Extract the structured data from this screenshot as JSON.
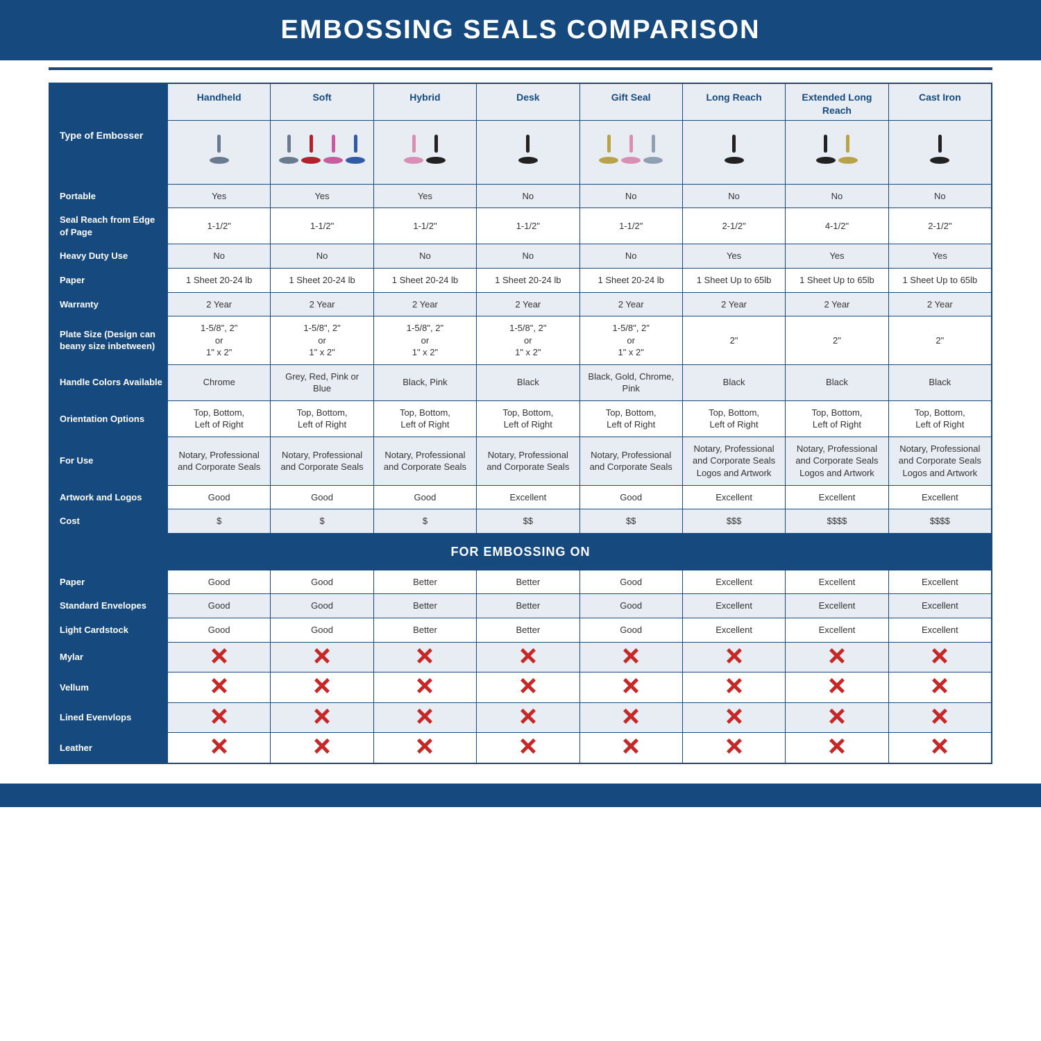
{
  "title": "EMBOSSING SEALS COMPARISON",
  "section_title": "FOR EMBOSSING ON",
  "colors": {
    "primary": "#164a7e",
    "header_bg": "#e8edf3",
    "text": "#333333",
    "x_red": "#c62828",
    "white": "#ffffff"
  },
  "columns": [
    {
      "label": "Type of Embosser",
      "is_rowlabel": true
    },
    {
      "label": "Handheld",
      "icon_colors": [
        "#6b7a8f"
      ]
    },
    {
      "label": "Soft",
      "icon_colors": [
        "#6b7a8f",
        "#b0222c",
        "#c85c9e",
        "#2e5aa8"
      ]
    },
    {
      "label": "Hybrid",
      "icon_colors": [
        "#d88fb3",
        "#222222"
      ]
    },
    {
      "label": "Desk",
      "icon_colors": [
        "#222222"
      ]
    },
    {
      "label": "Gift Seal",
      "icon_colors": [
        "#b8a24a",
        "#d88fb3",
        "#8fa0b3"
      ]
    },
    {
      "label": "Long Reach",
      "icon_colors": [
        "#222222"
      ]
    },
    {
      "label": "Extended Long Reach",
      "icon_colors": [
        "#222222",
        "#b8a24a"
      ]
    },
    {
      "label": "Cast Iron",
      "icon_colors": [
        "#222222"
      ]
    }
  ],
  "rows_main": [
    {
      "label": "Portable",
      "stripe": true,
      "cells": [
        "Yes",
        "Yes",
        "Yes",
        "No",
        "No",
        "No",
        "No",
        "No"
      ]
    },
    {
      "label": "Seal Reach from Edge of Page",
      "stripe": false,
      "cells": [
        "1-1/2\"",
        "1-1/2\"",
        "1-1/2\"",
        "1-1/2\"",
        "1-1/2\"",
        "2-1/2\"",
        "4-1/2\"",
        "2-1/2\""
      ]
    },
    {
      "label": "Heavy Duty Use",
      "stripe": true,
      "cells": [
        "No",
        "No",
        "No",
        "No",
        "No",
        "Yes",
        "Yes",
        "Yes"
      ]
    },
    {
      "label": "Paper",
      "stripe": false,
      "cells": [
        "1 Sheet 20-24 lb",
        "1 Sheet 20-24 lb",
        "1 Sheet 20-24 lb",
        "1 Sheet 20-24 lb",
        "1 Sheet 20-24 lb",
        "1 Sheet Up to 65lb",
        "1 Sheet Up to 65lb",
        "1 Sheet Up to 65lb"
      ]
    },
    {
      "label": "Warranty",
      "stripe": true,
      "cells": [
        "2 Year",
        "2 Year",
        "2 Year",
        "2 Year",
        "2 Year",
        "2 Year",
        "2 Year",
        "2 Year"
      ]
    },
    {
      "label": "Plate Size (Design can beany size inbetween)",
      "stripe": false,
      "cells": [
        "1-5/8\", 2\"\nor\n1\" x 2\"",
        "1-5/8\", 2\"\nor\n1\" x 2\"",
        "1-5/8\", 2\"\nor\n1\" x 2\"",
        "1-5/8\", 2\"\nor\n1\" x 2\"",
        "1-5/8\", 2\"\nor\n1\" x 2\"",
        "2\"",
        "2\"",
        "2\""
      ]
    },
    {
      "label": "Handle Colors Available",
      "stripe": true,
      "cells": [
        "Chrome",
        "Grey, Red, Pink or Blue",
        "Black, Pink",
        "Black",
        "Black, Gold, Chrome, Pink",
        "Black",
        "Black",
        "Black"
      ]
    },
    {
      "label": "Orientation Options",
      "stripe": false,
      "cells": [
        "Top, Bottom,\nLeft of Right",
        "Top, Bottom,\nLeft of Right",
        "Top, Bottom,\nLeft of Right",
        "Top, Bottom,\nLeft of Right",
        "Top, Bottom,\nLeft of Right",
        "Top, Bottom,\nLeft of Right",
        "Top, Bottom,\nLeft of Right",
        "Top, Bottom,\nLeft of Right"
      ]
    },
    {
      "label": "For Use",
      "stripe": true,
      "cells": [
        "Notary, Professional and Corporate Seals",
        "Notary, Professional and Corporate Seals",
        "Notary, Professional and Corporate Seals",
        "Notary, Professional and Corporate Seals",
        "Notary, Professional and Corporate Seals",
        "Notary, Professional and Corporate Seals Logos and Artwork",
        "Notary, Professional and Corporate Seals Logos and Artwork",
        "Notary, Professional and Corporate Seals Logos and Artwork"
      ]
    },
    {
      "label": "Artwork and Logos",
      "stripe": false,
      "cells": [
        "Good",
        "Good",
        "Good",
        "Excellent",
        "Good",
        "Excellent",
        "Excellent",
        "Excellent"
      ]
    },
    {
      "label": "Cost",
      "stripe": true,
      "cells": [
        "$",
        "$",
        "$",
        "$$",
        "$$",
        "$$$",
        "$$$$",
        "$$$$"
      ]
    }
  ],
  "rows_embossing": [
    {
      "label": "Paper",
      "stripe": false,
      "cells": [
        "Good",
        "Good",
        "Better",
        "Better",
        "Good",
        "Excellent",
        "Excellent",
        "Excellent"
      ]
    },
    {
      "label": "Standard Envelopes",
      "stripe": true,
      "cells": [
        "Good",
        "Good",
        "Better",
        "Better",
        "Good",
        "Excellent",
        "Excellent",
        "Excellent"
      ]
    },
    {
      "label": "Light Cardstock",
      "stripe": false,
      "cells": [
        "Good",
        "Good",
        "Better",
        "Better",
        "Good",
        "Excellent",
        "Excellent",
        "Excellent"
      ]
    },
    {
      "label": "Mylar",
      "stripe": true,
      "cells": [
        "X",
        "X",
        "X",
        "X",
        "X",
        "X",
        "X",
        "X"
      ]
    },
    {
      "label": "Vellum",
      "stripe": false,
      "cells": [
        "X",
        "X",
        "X",
        "X",
        "X",
        "X",
        "X",
        "X"
      ]
    },
    {
      "label": "Lined Evenvlops",
      "stripe": true,
      "cells": [
        "X",
        "X",
        "X",
        "X",
        "X",
        "X",
        "X",
        "X"
      ]
    },
    {
      "label": "Leather",
      "stripe": false,
      "cells": [
        "X",
        "X",
        "X",
        "X",
        "X",
        "X",
        "X",
        "X"
      ]
    }
  ]
}
